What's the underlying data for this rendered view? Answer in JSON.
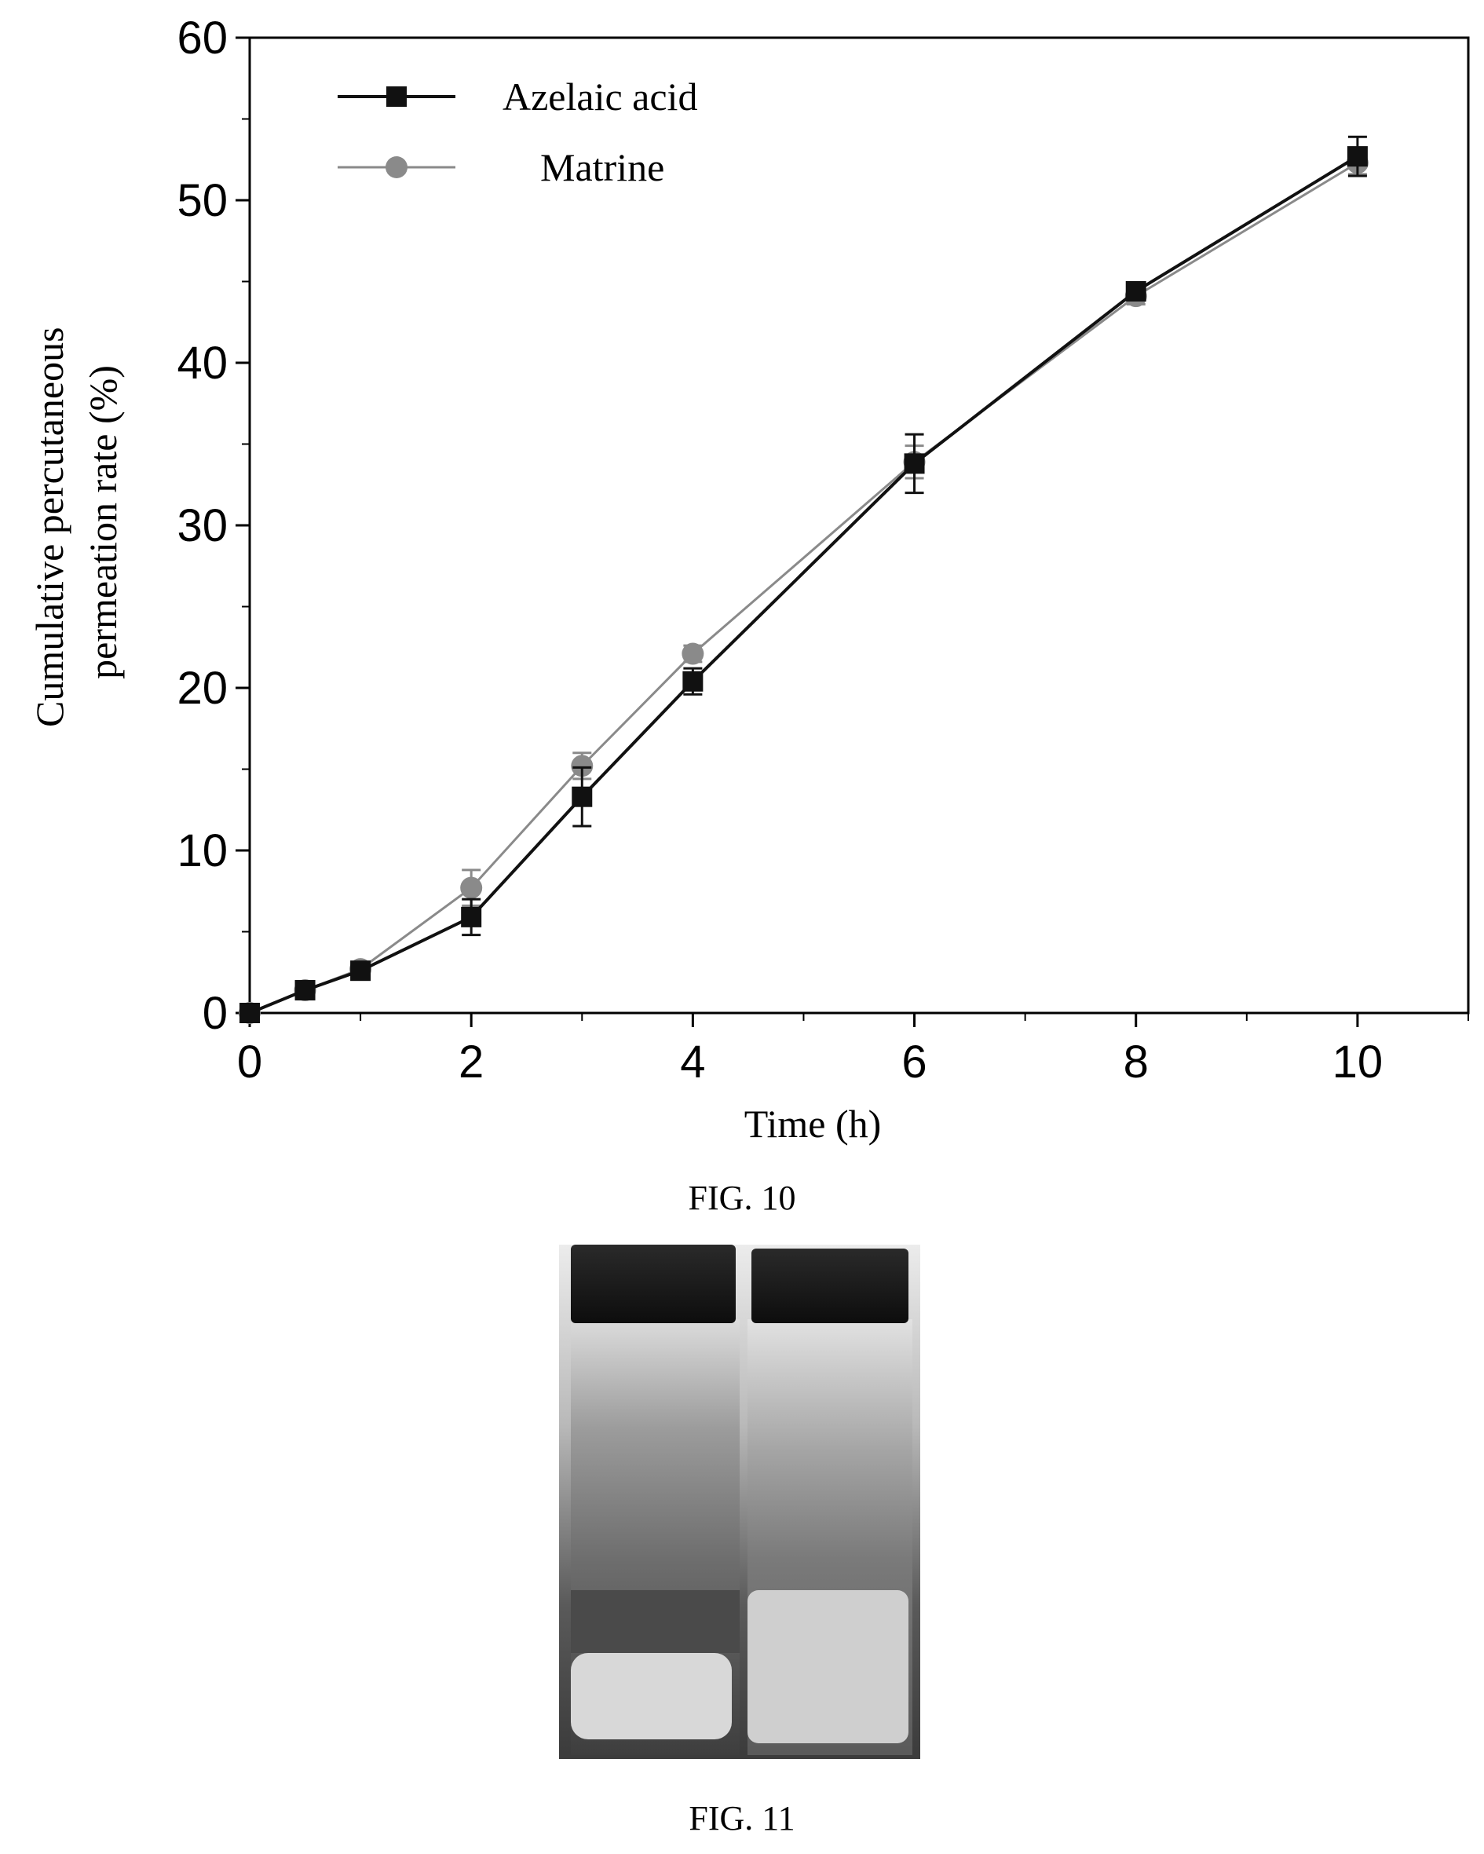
{
  "chart_data": {
    "type": "line",
    "xlabel": "Time (h)",
    "ylabel_lines": [
      "Cumulative percutaneous",
      "permeation rate (%)"
    ],
    "xlim": [
      0,
      11
    ],
    "ylim": [
      0,
      60
    ],
    "x_ticks": [
      0,
      2,
      4,
      6,
      8,
      10
    ],
    "y_ticks": [
      0,
      10,
      20,
      30,
      40,
      50,
      60
    ],
    "grid": false,
    "legend_position": "top-left",
    "series": [
      {
        "name": "Azelaic acid",
        "marker": "square",
        "color": "#111111",
        "x": [
          0,
          0.5,
          1,
          2,
          3,
          4,
          6,
          8,
          10
        ],
        "y": [
          0,
          1.4,
          2.6,
          5.9,
          13.3,
          20.4,
          33.8,
          44.4,
          52.7
        ],
        "error": [
          0,
          0.3,
          0.4,
          1.1,
          1.8,
          0.8,
          1.8,
          0.5,
          1.2
        ]
      },
      {
        "name": "Matrine",
        "marker": "circle",
        "color": "#8a8a8a",
        "x": [
          0,
          0.5,
          1,
          2,
          3,
          4,
          6,
          8,
          10
        ],
        "y": [
          0,
          1.4,
          2.7,
          7.7,
          15.2,
          22.1,
          33.9,
          44.1,
          52.3
        ],
        "error": [
          0,
          0.3,
          0.4,
          1.1,
          0.8,
          0.5,
          1.0,
          0.5,
          0.7
        ]
      }
    ]
  },
  "figure10": {
    "caption": "FIG. 10"
  },
  "figure11": {
    "caption": "FIG. 11"
  }
}
